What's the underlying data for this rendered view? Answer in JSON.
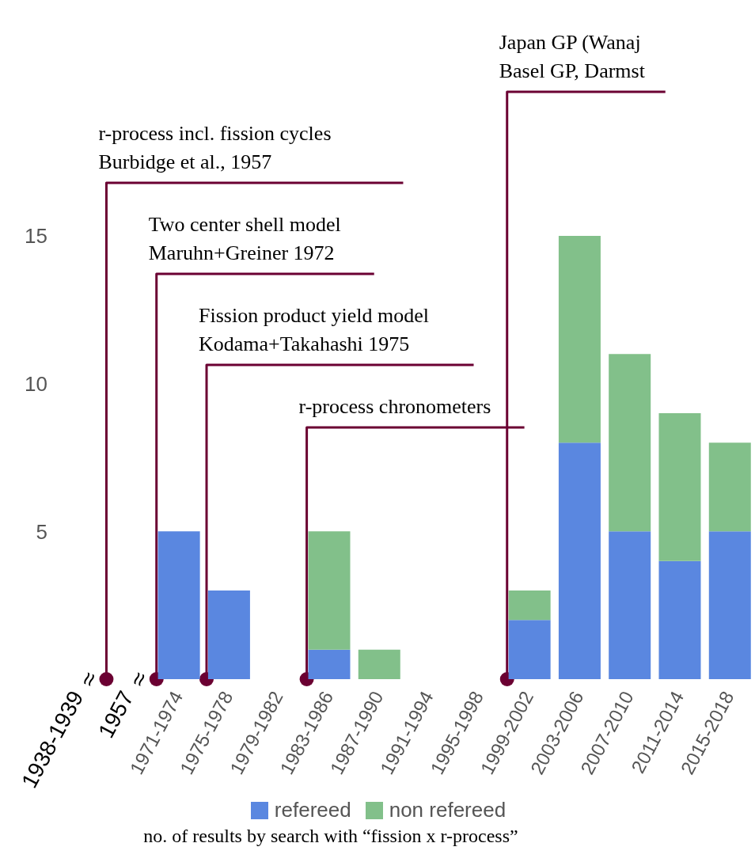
{
  "chart_data": {
    "type": "bar",
    "stacked": true,
    "categories": [
      "1938-1939",
      "1957",
      "1971-1974",
      "1975-1978",
      "1979-1982",
      "1983-1986",
      "1987-1990",
      "1991-1994",
      "1995-1998",
      "1999-2002",
      "2003-2006",
      "2007-2010",
      "2011-2014",
      "2015-2018"
    ],
    "series": [
      {
        "name": "refereed",
        "color": "#5a87e0",
        "values": [
          null,
          null,
          5,
          3,
          0,
          1,
          0,
          0,
          0,
          2,
          8,
          5,
          4,
          5
        ]
      },
      {
        "name": "non refereed",
        "color": "#82c08a",
        "values": [
          null,
          null,
          0,
          0,
          0,
          4,
          1,
          0,
          0,
          1,
          7,
          6,
          5,
          3
        ]
      }
    ],
    "ylim": [
      0,
      15
    ],
    "yticks": [
      5,
      10,
      15
    ],
    "grid": false,
    "legend": "bottom",
    "annotations": [
      "no. of results by search with “fission x r-process”",
      "≈",
      "≈",
      {
        "text": "Japan GP (Wanaj\nBasel GP, Darmst",
        "x": "1999-2002",
        "y": 0
      },
      {
        "text": "r-process incl. fission cycles\nBurbidge et al., 1957",
        "x": "1957",
        "y": 0
      },
      {
        "text": "Two center shell model\nMaruhn+Greiner 1972",
        "x": "1971-1974",
        "y": 0
      },
      {
        "text": "Fission product yield model\nKodama+Takahashi 1975",
        "x": "1975-1978",
        "y": 0
      },
      {
        "text": "r-process chronometers",
        "x": "1983-1986",
        "y": 0
      }
    ]
  }
}
